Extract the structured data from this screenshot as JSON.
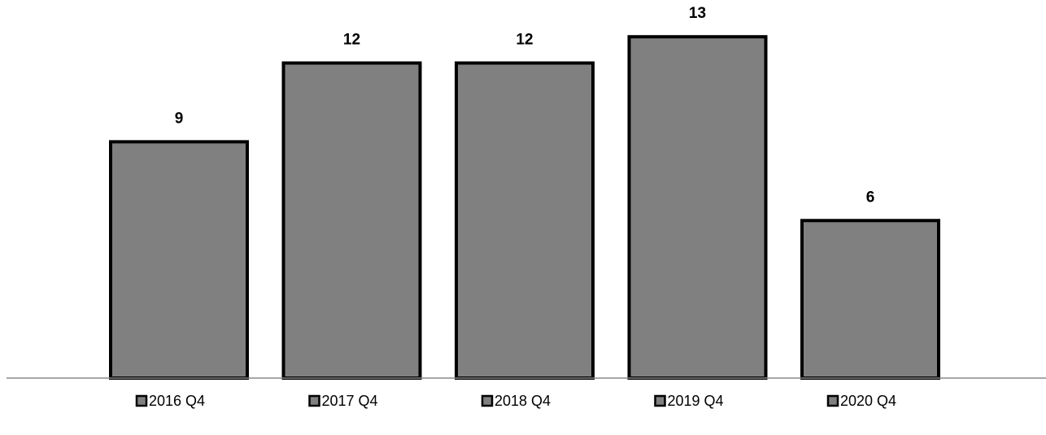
{
  "chart_data": {
    "type": "bar",
    "series": [
      {
        "name": "2016 Q4",
        "color": "#808080",
        "values": [
          9
        ]
      },
      {
        "name": "2017 Q4",
        "color": "#808080",
        "values": [
          12
        ]
      },
      {
        "name": "2018 Q4",
        "color": "#808080",
        "values": [
          12
        ]
      },
      {
        "name": "2019 Q4",
        "color": "#808080",
        "values": [
          13
        ]
      },
      {
        "name": "2020 Q4",
        "color": "#808080",
        "values": [
          6
        ]
      }
    ],
    "ylim": [
      0,
      14.4
    ],
    "legend": "bottom"
  }
}
